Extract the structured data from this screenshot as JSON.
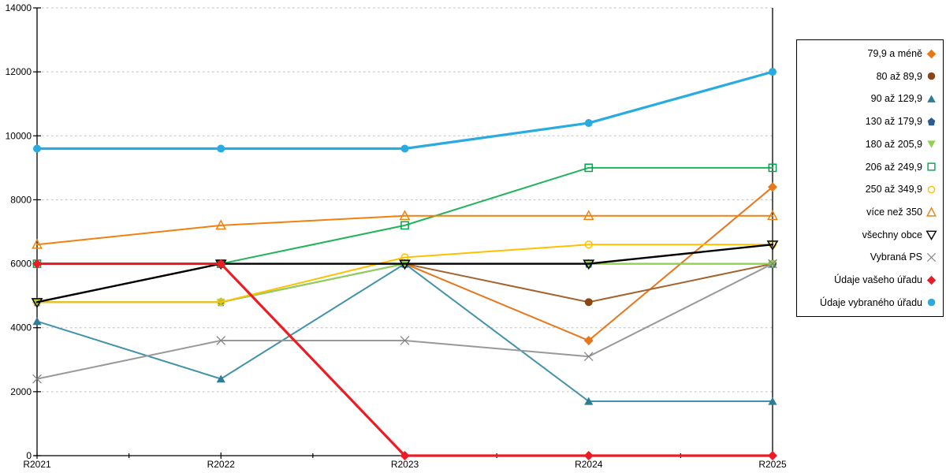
{
  "chart_data": {
    "type": "line",
    "title": "",
    "xlabel": "",
    "ylabel": "",
    "categories": [
      "R2021",
      "R2022",
      "R2023",
      "R2024",
      "R2025"
    ],
    "ylim": [
      0,
      14000
    ],
    "y_ticks": [
      0,
      2000,
      4000,
      6000,
      8000,
      10000,
      12000,
      14000
    ],
    "grid": "horizontal-dashed",
    "grid_color": "#BDBDBD",
    "axis_color": "#000000",
    "legend_position": "right",
    "series": [
      {
        "id": "79-9-a-mene",
        "name": "79,9 a méně",
        "marker": "diamond",
        "fill": "filled",
        "color": "#E8761A",
        "line_color": "#E8761A",
        "line_width": 2,
        "values": [
          4800,
          6000,
          6000,
          3600,
          8400
        ]
      },
      {
        "id": "80-az-89-9",
        "name": "80 až 89,9",
        "marker": "circle",
        "fill": "filled",
        "color": "#8C4616",
        "line_color": "#A4622D",
        "line_width": 2,
        "values": [
          4800,
          6000,
          6000,
          4800,
          6000
        ]
      },
      {
        "id": "90-az-129-9",
        "name": "90 až 129,9",
        "marker": "triangle-up",
        "fill": "filled",
        "color": "#2E7D96",
        "line_color": "#4292AB",
        "line_width": 2,
        "values": [
          4200,
          2400,
          6000,
          1700,
          1700
        ]
      },
      {
        "id": "130-az-179-9",
        "name": "130 až 179,9",
        "marker": "pentagon",
        "fill": "filled",
        "color": "#2E5C8A",
        "line_color": "#2E5C8A",
        "line_width": 2,
        "values": [
          4800,
          4800,
          6000,
          6000,
          6000
        ]
      },
      {
        "id": "180-az-205-9",
        "name": "180 až 205,9",
        "marker": "triangle-down",
        "fill": "filled",
        "color": "#92D050",
        "line_color": "#92D050",
        "line_width": 2,
        "values": [
          4800,
          4800,
          6000,
          6000,
          6000
        ]
      },
      {
        "id": "206-az-249-9",
        "name": "206 až 249,9",
        "marker": "square",
        "fill": "open",
        "color": "#00A550",
        "line_color": "#22B45A",
        "line_width": 2,
        "values": [
          6000,
          6000,
          7200,
          9000,
          9000
        ]
      },
      {
        "id": "250-az-349-9",
        "name": "250 až 349,9",
        "marker": "circle",
        "fill": "open",
        "color": "#FFC000",
        "line_color": "#FFC000",
        "line_width": 2,
        "values": [
          4800,
          4800,
          6200,
          6600,
          6600
        ]
      },
      {
        "id": "vice-nez-350",
        "name": "více než 350",
        "marker": "triangle-up",
        "fill": "open",
        "color": "#F0810F",
        "line_color": "#F0810F",
        "line_width": 2,
        "values": [
          6600,
          7200,
          7500,
          7500,
          7500
        ]
      },
      {
        "id": "vsechny-obce",
        "name": "všechny obce",
        "marker": "triangle-down",
        "fill": "open",
        "color": "#000000",
        "line_color": "#000000",
        "line_width": 2.4,
        "values": [
          4800,
          6000,
          6000,
          6000,
          6600
        ]
      },
      {
        "id": "vybrana-ps",
        "name": "Vybraná PS",
        "marker": "x",
        "fill": "open",
        "color": "#7F7F7F",
        "line_color": "#999999",
        "line_width": 2,
        "values": [
          2400,
          3600,
          3600,
          3100,
          6000
        ]
      },
      {
        "id": "udaje-vaseho-uradu",
        "name": "Údaje vašeho úřadu",
        "marker": "diamond",
        "fill": "filled",
        "color": "#ED1C24",
        "line_color": "#ED1C24",
        "line_width": 3.2,
        "values": [
          6000,
          6000,
          0,
          0,
          0
        ]
      },
      {
        "id": "udaje-vybraneho-uradu",
        "name": "Údaje vybraného úřadu",
        "marker": "circle",
        "fill": "filled",
        "color": "#29ABE2",
        "line_color": "#29ABE2",
        "line_width": 3.2,
        "values": [
          9600,
          9600,
          9600,
          10400,
          12000
        ]
      }
    ]
  }
}
